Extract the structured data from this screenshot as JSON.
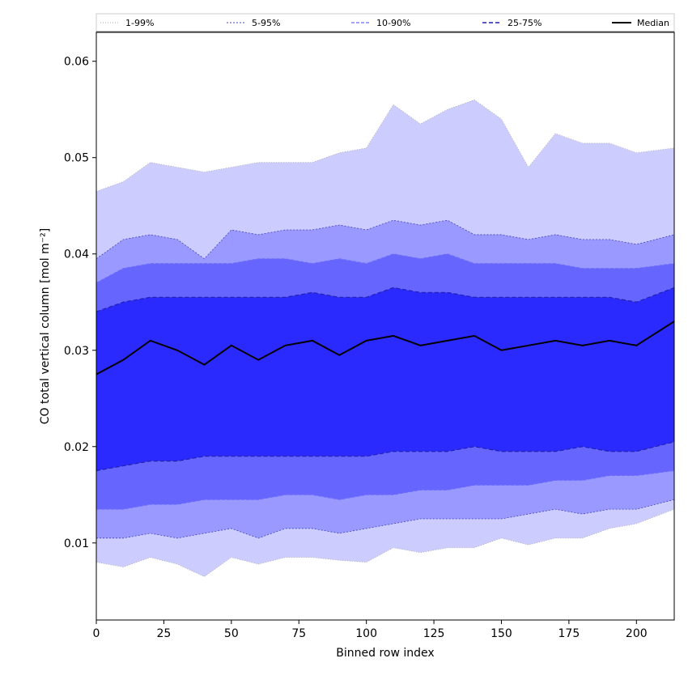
{
  "chart_data": {
    "type": "area",
    "xlabel": "Binned row index",
    "ylabel": "CO total vertical column [mol m⁻²]",
    "xlim": [
      0,
      214
    ],
    "ylim": [
      0.002,
      0.063
    ],
    "xticks": [
      0,
      25,
      50,
      75,
      100,
      125,
      150,
      175,
      200
    ],
    "yticks": [
      0.01,
      0.02,
      0.03,
      0.04,
      0.05,
      0.06
    ],
    "ytick_labels": [
      "0.01",
      "0.02",
      "0.03",
      "0.04",
      "0.05",
      "0.06"
    ],
    "legend_position": "top, spanning full width",
    "colors": {
      "band_1_99": "#ccccff",
      "band_5_95": "#9999ff",
      "band_10_90": "#6666ff",
      "band_25_75": "#2a2aff",
      "line_1_99": "#aaaaaa",
      "line_5_95": "#4444bb",
      "line_10_90": "#6b6bff",
      "line_25_75": "#2222aa",
      "median": "#000000"
    },
    "x": [
      0,
      10,
      20,
      30,
      40,
      50,
      60,
      70,
      80,
      90,
      100,
      110,
      120,
      130,
      140,
      150,
      160,
      170,
      180,
      190,
      200,
      214
    ],
    "series": [
      {
        "name": "1-99%",
        "style": "band",
        "lower": [
          0.008,
          0.0075,
          0.0085,
          0.0078,
          0.0065,
          0.0085,
          0.0078,
          0.0085,
          0.0085,
          0.0082,
          0.008,
          0.0095,
          0.009,
          0.0095,
          0.0095,
          0.0105,
          0.0098,
          0.0105,
          0.0105,
          0.0115,
          0.012,
          0.0135
        ],
        "upper": [
          0.0465,
          0.0475,
          0.0495,
          0.049,
          0.0485,
          0.049,
          0.0495,
          0.0495,
          0.0495,
          0.0505,
          0.051,
          0.0555,
          0.0535,
          0.055,
          0.056,
          0.054,
          0.049,
          0.0525,
          0.0515,
          0.0515,
          0.0505,
          0.051
        ]
      },
      {
        "name": "5-95%",
        "style": "band",
        "lower": [
          0.0105,
          0.0105,
          0.011,
          0.0105,
          0.011,
          0.0115,
          0.0105,
          0.0115,
          0.0115,
          0.011,
          0.0115,
          0.012,
          0.0125,
          0.0125,
          0.0125,
          0.0125,
          0.013,
          0.0135,
          0.013,
          0.0135,
          0.0135,
          0.0145
        ],
        "upper": [
          0.0395,
          0.0415,
          0.042,
          0.0415,
          0.0395,
          0.0425,
          0.042,
          0.0425,
          0.0425,
          0.043,
          0.0425,
          0.0435,
          0.043,
          0.0435,
          0.042,
          0.042,
          0.0415,
          0.042,
          0.0415,
          0.0415,
          0.041,
          0.042
        ]
      },
      {
        "name": "10-90%",
        "style": "band",
        "lower": [
          0.0135,
          0.0135,
          0.014,
          0.014,
          0.0145,
          0.0145,
          0.0145,
          0.015,
          0.015,
          0.0145,
          0.015,
          0.015,
          0.0155,
          0.0155,
          0.016,
          0.016,
          0.016,
          0.0165,
          0.0165,
          0.017,
          0.017,
          0.0175
        ],
        "upper": [
          0.037,
          0.0385,
          0.039,
          0.039,
          0.039,
          0.039,
          0.0395,
          0.0395,
          0.039,
          0.0395,
          0.039,
          0.04,
          0.0395,
          0.04,
          0.039,
          0.039,
          0.039,
          0.039,
          0.0385,
          0.0385,
          0.0385,
          0.039
        ]
      },
      {
        "name": "25-75%",
        "style": "band",
        "lower": [
          0.0175,
          0.018,
          0.0185,
          0.0185,
          0.019,
          0.019,
          0.019,
          0.019,
          0.019,
          0.019,
          0.019,
          0.0195,
          0.0195,
          0.0195,
          0.02,
          0.0195,
          0.0195,
          0.0195,
          0.02,
          0.0195,
          0.0195,
          0.0205
        ],
        "upper": [
          0.034,
          0.035,
          0.0355,
          0.0355,
          0.0355,
          0.0355,
          0.0355,
          0.0355,
          0.036,
          0.0355,
          0.0355,
          0.0365,
          0.036,
          0.036,
          0.0355,
          0.0355,
          0.0355,
          0.0355,
          0.0355,
          0.0355,
          0.035,
          0.0365
        ]
      },
      {
        "name": "Median",
        "style": "line",
        "values": [
          0.0275,
          0.029,
          0.031,
          0.03,
          0.0285,
          0.0305,
          0.029,
          0.0305,
          0.031,
          0.0295,
          0.031,
          0.0315,
          0.0305,
          0.031,
          0.0315,
          0.03,
          0.0305,
          0.031,
          0.0305,
          0.031,
          0.0305,
          0.033
        ]
      }
    ]
  }
}
